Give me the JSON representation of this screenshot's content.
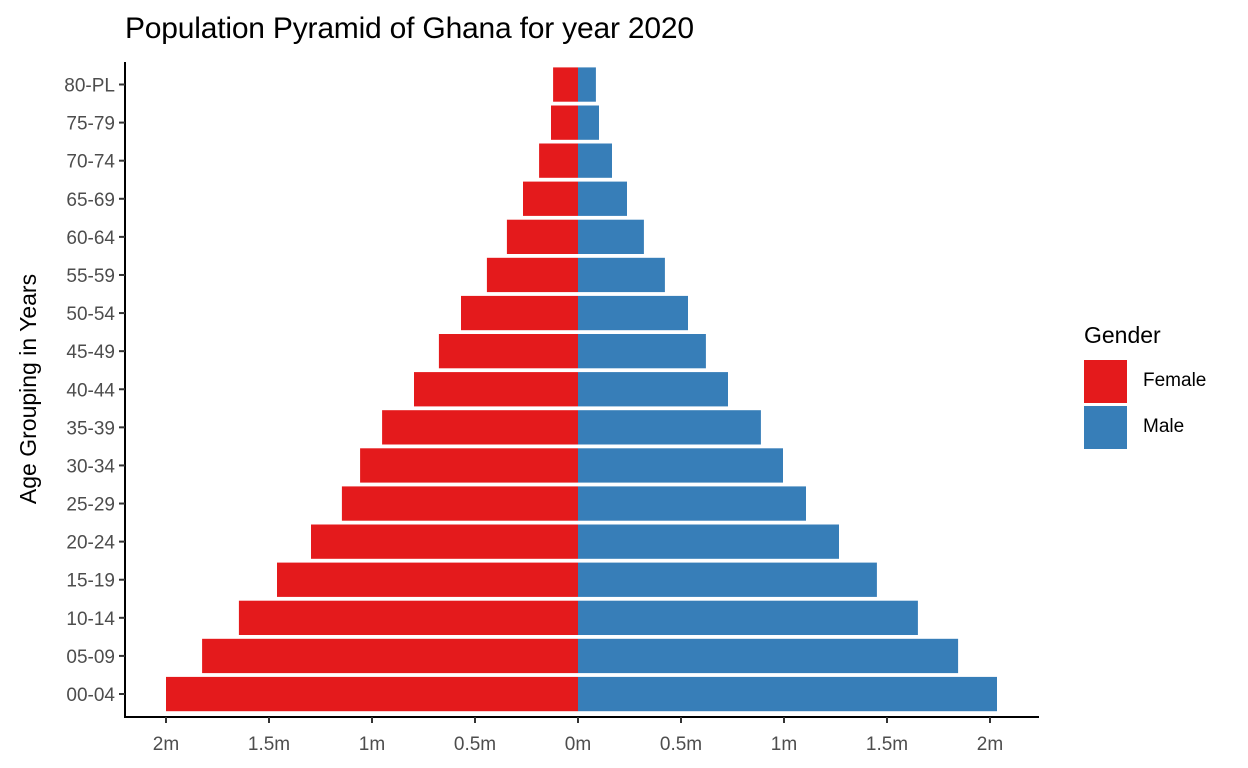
{
  "chart_data": {
    "type": "bar",
    "orientation": "horizontal-diverging",
    "title": "Population Pyramid of Ghana for year 2020",
    "xlabel": "",
    "ylabel": "Age Grouping in Years",
    "xlim": [
      -2.2,
      2.2
    ],
    "x_unit": "millions",
    "x_ticks": [
      -2,
      -1.5,
      -1,
      -0.5,
      0,
      0.5,
      1,
      1.5,
      2
    ],
    "x_tick_labels": [
      "2m",
      "1.5m",
      "1m",
      "0.5m",
      "0m",
      "0.5m",
      "1m",
      "1.5m",
      "2m"
    ],
    "categories": [
      "00-04",
      "05-09",
      "10-14",
      "15-19",
      "20-24",
      "25-29",
      "30-34",
      "35-39",
      "40-44",
      "45-49",
      "50-54",
      "55-59",
      "60-64",
      "65-69",
      "70-74",
      "75-79",
      "80-PL"
    ],
    "series": [
      {
        "name": "Female",
        "color": "#E41A1C",
        "side": "left",
        "values": [
          2.0,
          1.825,
          1.646,
          1.461,
          1.296,
          1.146,
          1.058,
          0.951,
          0.796,
          0.675,
          0.568,
          0.442,
          0.345,
          0.267,
          0.189,
          0.131,
          0.121
        ]
      },
      {
        "name": "Male",
        "color": "#377EB8",
        "side": "right",
        "values": [
          2.034,
          1.845,
          1.65,
          1.451,
          1.267,
          1.107,
          0.995,
          0.888,
          0.728,
          0.621,
          0.534,
          0.422,
          0.32,
          0.238,
          0.165,
          0.102,
          0.087
        ]
      }
    ],
    "grid": false,
    "legend": {
      "title": "Gender",
      "placement": "right"
    }
  }
}
